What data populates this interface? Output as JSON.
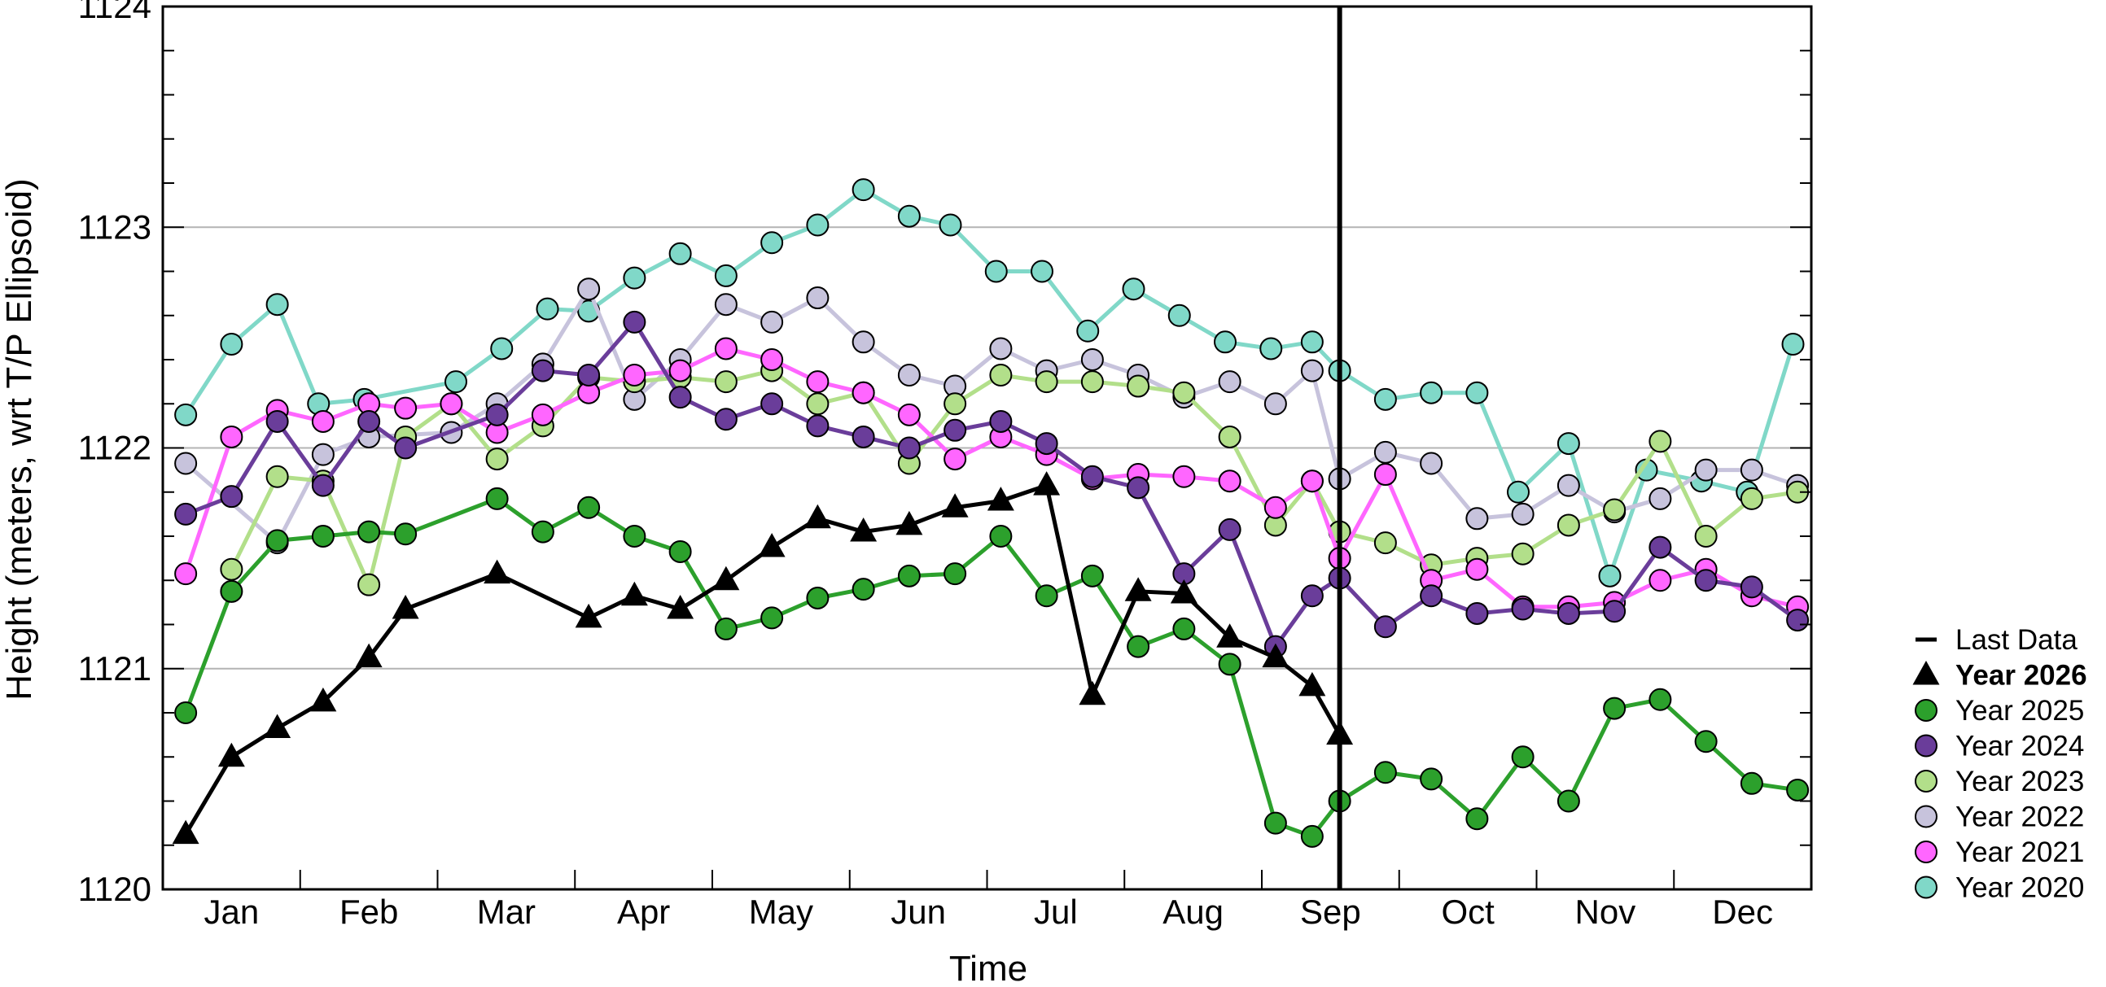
{
  "chart_data": {
    "type": "line",
    "title": "",
    "xlabel": "Time",
    "ylabel": "Height (meters, wrt T/P Ellipsoid)",
    "xlim": [
      0,
      36
    ],
    "ylim": [
      1120,
      1124
    ],
    "y_ticks": [
      1120,
      1121,
      1122,
      1123,
      1124
    ],
    "grid": "horizontal at 1121, 1122, 1123",
    "month_labels": [
      "Jan",
      "Feb",
      "Mar",
      "Apr",
      "May",
      "Jun",
      "Jul",
      "Aug",
      "Sep",
      "Oct",
      "Nov",
      "Dec"
    ],
    "last_data_x": 25.7,
    "legend_position": "right",
    "legend": [
      {
        "label": "Last Data",
        "marker": "line",
        "color": "#000000"
      },
      {
        "label": "Year 2026",
        "marker": "triangle",
        "color": "#000000",
        "bold": true
      },
      {
        "label": "Year 2025",
        "marker": "circle",
        "color": "#2ca02c"
      },
      {
        "label": "Year 2024",
        "marker": "circle",
        "color": "#6a3d9a"
      },
      {
        "label": "Year 2023",
        "marker": "circle",
        "color": "#b2df8a"
      },
      {
        "label": "Year 2022",
        "marker": "circle",
        "color": "#c7c3dc"
      },
      {
        "label": "Year 2021",
        "marker": "circle",
        "color": "#ff66ff"
      },
      {
        "label": "Year 2020",
        "marker": "circle",
        "color": "#80d8c8"
      }
    ],
    "series": [
      {
        "name": "Year 2020",
        "color": "#80d8c8",
        "marker": "circle",
        "x": [
          0.5,
          1.5,
          2.5,
          3.4,
          4.4,
          6.4,
          7.4,
          8.4,
          9.3,
          10.3,
          11.3,
          12.3,
          13.3,
          14.3,
          15.3,
          16.3,
          17.2,
          18.2,
          19.2,
          20.2,
          21.2,
          22.2,
          23.2,
          24.2,
          25.1,
          25.7,
          26.7,
          27.7,
          28.7,
          29.6,
          30.7,
          31.6,
          32.4,
          33.6,
          34.6,
          35.6
        ],
        "y": [
          1122.15,
          1122.47,
          1122.65,
          1122.2,
          1122.22,
          1122.3,
          1122.45,
          1122.63,
          1122.62,
          1122.77,
          1122.88,
          1122.78,
          1122.93,
          1123.01,
          1123.17,
          1123.05,
          1123.01,
          1122.8,
          1122.8,
          1122.53,
          1122.72,
          1122.6,
          1122.48,
          1122.45,
          1122.48,
          1122.35,
          1122.22,
          1122.25,
          1122.25,
          1121.8,
          1122.02,
          1121.42,
          1121.9,
          1121.85,
          1121.8,
          1122.47
        ]
      },
      {
        "name": "Year 2022",
        "color": "#c7c3dc",
        "marker": "circle",
        "x": [
          0.5,
          2.5,
          3.5,
          4.5,
          6.3,
          7.3,
          8.3,
          9.3,
          10.3,
          11.3,
          12.3,
          13.3,
          14.3,
          15.3,
          16.3,
          17.3,
          18.3,
          19.3,
          20.3,
          21.3,
          22.3,
          23.3,
          24.3,
          25.1,
          25.7,
          26.7,
          27.7,
          28.7,
          29.7,
          30.7,
          31.7,
          32.7,
          33.7,
          34.7,
          35.7
        ],
        "y": [
          1121.93,
          1121.57,
          1121.97,
          1122.05,
          1122.07,
          1122.2,
          1122.38,
          1122.72,
          1122.22,
          1122.4,
          1122.65,
          1122.57,
          1122.68,
          1122.48,
          1122.33,
          1122.28,
          1122.45,
          1122.35,
          1122.4,
          1122.33,
          1122.23,
          1122.3,
          1122.2,
          1122.35,
          1121.86,
          1121.98,
          1121.93,
          1121.68,
          1121.7,
          1121.83,
          1121.71,
          1121.77,
          1121.9,
          1121.9,
          1121.83
        ]
      },
      {
        "name": "Year 2023",
        "color": "#b2df8a",
        "marker": "circle",
        "x": [
          1.5,
          2.5,
          3.5,
          4.5,
          5.3,
          6.3,
          7.3,
          8.3,
          9.3,
          10.3,
          11.3,
          12.3,
          13.3,
          14.3,
          15.3,
          16.3,
          17.3,
          18.3,
          19.3,
          20.3,
          21.3,
          22.3,
          23.3,
          24.3,
          25.1,
          25.7,
          26.7,
          27.7,
          28.7,
          29.7,
          30.7,
          31.7,
          32.7,
          33.7,
          34.7,
          35.7
        ],
        "y": [
          1121.45,
          1121.87,
          1121.85,
          1121.38,
          1122.05,
          1122.2,
          1121.95,
          1122.1,
          1122.32,
          1122.3,
          1122.32,
          1122.3,
          1122.35,
          1122.2,
          1122.25,
          1121.93,
          1122.2,
          1122.33,
          1122.3,
          1122.3,
          1122.28,
          1122.25,
          1122.05,
          1121.65,
          1121.85,
          1121.62,
          1121.57,
          1121.47,
          1121.5,
          1121.52,
          1121.65,
          1121.72,
          1122.03,
          1121.6,
          1121.77,
          1121.8
        ]
      },
      {
        "name": "Year 2021",
        "color": "#ff66ff",
        "marker": "circle",
        "x": [
          0.5,
          1.5,
          2.5,
          3.5,
          4.5,
          5.3,
          6.3,
          7.3,
          8.3,
          9.3,
          10.3,
          11.3,
          12.3,
          13.3,
          14.3,
          15.3,
          16.3,
          17.3,
          18.3,
          19.3,
          20.3,
          21.3,
          22.3,
          23.3,
          24.3,
          25.1,
          25.7,
          26.7,
          27.7,
          28.7,
          29.7,
          30.7,
          31.7,
          32.7,
          33.7,
          34.7,
          35.7
        ],
        "y": [
          1121.43,
          1122.05,
          1122.17,
          1122.12,
          1122.2,
          1122.18,
          1122.2,
          1122.07,
          1122.15,
          1122.25,
          1122.33,
          1122.35,
          1122.45,
          1122.4,
          1122.3,
          1122.25,
          1122.15,
          1121.95,
          1122.05,
          1121.97,
          1121.86,
          1121.88,
          1121.87,
          1121.85,
          1121.73,
          1121.85,
          1121.5,
          1121.88,
          1121.4,
          1121.45,
          1121.28,
          1121.28,
          1121.3,
          1121.4,
          1121.45,
          1121.33,
          1121.28
        ]
      },
      {
        "name": "Year 2024",
        "color": "#6a3d9a",
        "marker": "circle",
        "x": [
          0.5,
          1.5,
          2.5,
          3.5,
          4.5,
          5.3,
          7.3,
          8.3,
          9.3,
          10.3,
          11.3,
          12.3,
          13.3,
          14.3,
          15.3,
          16.3,
          17.3,
          18.3,
          19.3,
          20.3,
          21.3,
          22.3,
          23.3,
          24.3,
          25.1,
          25.7,
          26.7,
          27.7,
          28.7,
          29.7,
          30.7,
          31.7,
          32.7,
          33.7,
          34.7,
          35.7
        ],
        "y": [
          1121.7,
          1121.78,
          1122.12,
          1121.83,
          1122.12,
          1122.0,
          1122.15,
          1122.35,
          1122.33,
          1122.57,
          1122.23,
          1122.13,
          1122.2,
          1122.1,
          1122.05,
          1122.0,
          1122.08,
          1122.12,
          1122.02,
          1121.87,
          1121.82,
          1121.43,
          1121.63,
          1121.1,
          1121.33,
          1121.41,
          1121.19,
          1121.33,
          1121.25,
          1121.27,
          1121.25,
          1121.26,
          1121.55,
          1121.4,
          1121.37,
          1121.22
        ]
      },
      {
        "name": "Year 2025",
        "color": "#2ca02c",
        "marker": "circle",
        "x": [
          0.5,
          1.5,
          2.5,
          3.5,
          4.5,
          5.3,
          7.3,
          8.3,
          9.3,
          10.3,
          11.3,
          12.3,
          13.3,
          14.3,
          15.3,
          16.3,
          17.3,
          18.3,
          19.3,
          20.3,
          21.3,
          22.3,
          23.3,
          24.3,
          25.1,
          25.7,
          26.7,
          27.7,
          28.7,
          29.7,
          30.7,
          31.7,
          32.7,
          33.7,
          34.7,
          35.7
        ],
        "y": [
          1120.8,
          1121.35,
          1121.58,
          1121.6,
          1121.62,
          1121.61,
          1121.77,
          1121.62,
          1121.73,
          1121.6,
          1121.53,
          1121.18,
          1121.23,
          1121.32,
          1121.36,
          1121.42,
          1121.43,
          1121.6,
          1121.33,
          1121.42,
          1121.1,
          1121.18,
          1121.02,
          1120.3,
          1120.24,
          1120.4,
          1120.53,
          1120.5,
          1120.32,
          1120.6,
          1120.4,
          1120.82,
          1120.86,
          1120.67,
          1120.48,
          1120.45
        ]
      },
      {
        "name": "Year 2026",
        "color": "#000000",
        "marker": "triangle",
        "x": [
          0.5,
          1.5,
          2.5,
          3.5,
          4.5,
          5.3,
          7.3,
          9.3,
          10.3,
          11.3,
          12.3,
          13.3,
          14.3,
          15.3,
          16.3,
          17.3,
          18.3,
          19.3,
          20.3,
          21.3,
          22.3,
          23.3,
          24.3,
          25.1,
          25.7
        ],
        "y": [
          1120.25,
          1120.6,
          1120.73,
          1120.85,
          1121.05,
          1121.27,
          1121.43,
          1121.23,
          1121.33,
          1121.27,
          1121.4,
          1121.55,
          1121.68,
          1121.62,
          1121.65,
          1121.73,
          1121.76,
          1121.83,
          1120.88,
          1121.35,
          1121.34,
          1121.14,
          1121.05,
          1120.92,
          1120.7
        ]
      }
    ]
  }
}
